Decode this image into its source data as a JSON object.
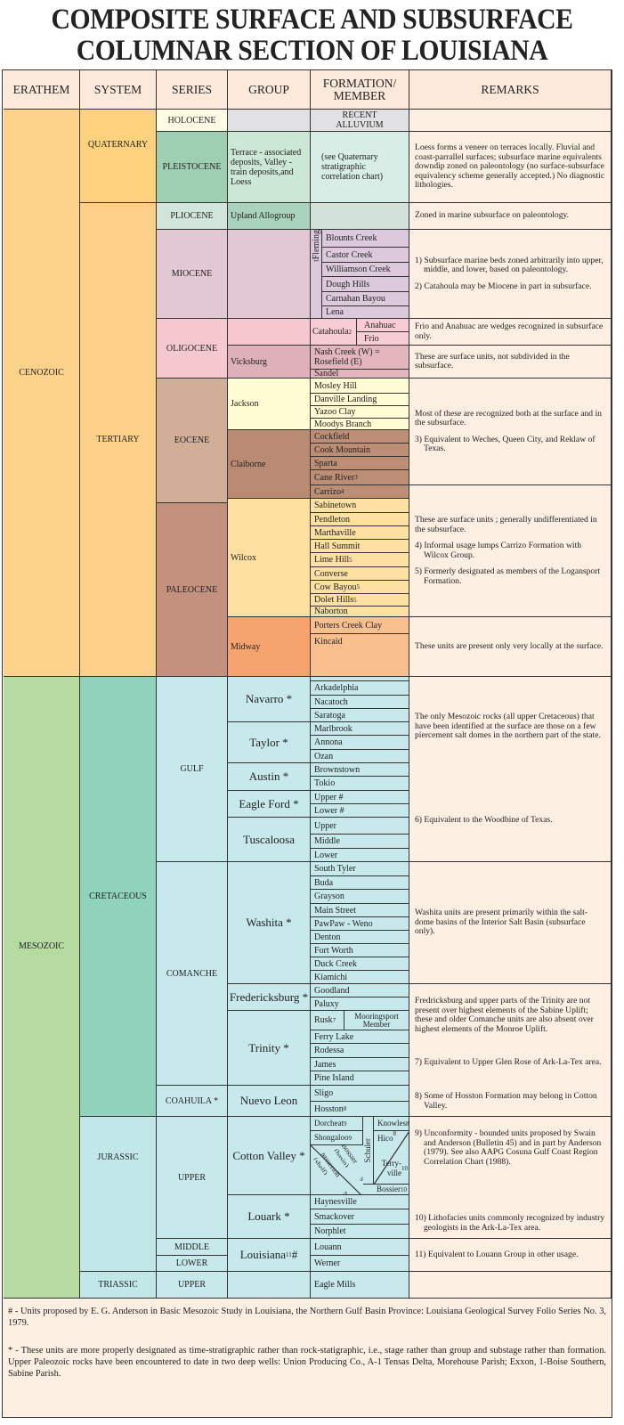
{
  "title": [
    "COMPOSITE SURFACE AND SUBSURFACE",
    "COLUMNAR SECTION OF LOUISIANA"
  ],
  "headers": {
    "erathem": "ERATHEM",
    "system": "SYSTEM",
    "series": "SERIES",
    "group": "GROUP",
    "formation": "FORMATION/ MEMBER",
    "remarks": "REMARKS"
  },
  "erathems": [
    {
      "label": "CENOZOIC",
      "color": "#fdd38c"
    },
    {
      "label": "MESOZOIC",
      "color": "#b5dba0"
    }
  ],
  "systems": [
    {
      "label": "QUATERNARY",
      "color": "#fdd27c"
    },
    {
      "label": "TERTIARY",
      "color": "#fdd08a"
    },
    {
      "label": "CRETACEOUS",
      "color": "#8fd3bd"
    },
    {
      "label": "JURASSIC",
      "color": "#c2e7e9"
    },
    {
      "label": "TRIASSIC",
      "color": "#c2e7e9"
    }
  ],
  "series": [
    "HOLOCENE",
    "PLEISTOCENE",
    "PLIOCENE",
    "MIOCENE",
    "OLIGOCENE",
    "EOCENE",
    "PALEOCENE",
    "GULF",
    "COMANCHE",
    "COAHUILA *",
    "UPPER",
    "MIDDLE",
    "LOWER",
    "UPPER"
  ],
  "groups": [
    {
      "label": ""
    },
    {
      "label": "Terrace - associated deposits, Valley - train deposits,and Loess"
    },
    {
      "label": "Upland Allogroup"
    },
    {
      "label": ""
    },
    {
      "label": ""
    },
    {
      "label": "Vicksburg"
    },
    {
      "label": "Jackson"
    },
    {
      "label": "Claiborne"
    },
    {
      "label": "Wilcox"
    },
    {
      "label": "Midway"
    },
    {
      "label": "Navarro *"
    },
    {
      "label": "Taylor *"
    },
    {
      "label": "Austin *"
    },
    {
      "label": "Eagle Ford *"
    },
    {
      "label": "Tuscaloosa"
    },
    {
      "label": "Washita *"
    },
    {
      "label": "Fredericksburg *"
    },
    {
      "label": "Trinity *"
    },
    {
      "label": "Nuevo Leon"
    },
    {
      "label": "Cotton Valley *"
    },
    {
      "label": "Louark *"
    },
    {
      "label": "Louisiana",
      "sup": "11",
      "suffix": " #"
    },
    {
      "label": ""
    }
  ],
  "formations": [
    {
      "name": "RECENT ALLUVIUM"
    },
    {
      "name": "(see Quaternary stratigraphic correlation chart)"
    },
    {
      "name": ""
    },
    {
      "name": "Fleming",
      "sup": "1"
    },
    {
      "name": "Blounts Creek"
    },
    {
      "name": "Castor Creek"
    },
    {
      "name": "Williamson Creek"
    },
    {
      "name": "Dough Hills"
    },
    {
      "name": "Carnahan Bayou"
    },
    {
      "name": "Lena"
    },
    {
      "name": "Catahoula",
      "sup": "2"
    },
    {
      "name": "Anahuac"
    },
    {
      "name": "Frio"
    },
    {
      "name": "Nash Creek (W) = Rosefield (E)"
    },
    {
      "name": "Sandel"
    },
    {
      "name": "Mosley Hill"
    },
    {
      "name": "Danville Landing"
    },
    {
      "name": "Yazoo Clay"
    },
    {
      "name": "Moodys Branch"
    },
    {
      "name": "Cockfield"
    },
    {
      "name": "Cook Mountain"
    },
    {
      "name": "Sparta"
    },
    {
      "name": "Cane River",
      "sup": "3"
    },
    {
      "name": "Carrizo",
      "sup": "4"
    },
    {
      "name": "Sabinetown"
    },
    {
      "name": "Pendleton"
    },
    {
      "name": "Marthaville"
    },
    {
      "name": "Hall Summit"
    },
    {
      "name": "Lime Hill",
      "sup": "5"
    },
    {
      "name": "Converse"
    },
    {
      "name": "Cow Bayou",
      "sup": "5"
    },
    {
      "name": "Dolet Hills",
      "sup": "5"
    },
    {
      "name": "Naborton"
    },
    {
      "name": "Porters Creek Clay"
    },
    {
      "name": "Kincaid"
    },
    {
      "name": "Arkadelphia"
    },
    {
      "name": "Nacatoch"
    },
    {
      "name": "Saratoga"
    },
    {
      "name": "Marlbrook"
    },
    {
      "name": "Annona"
    },
    {
      "name": "Ozan"
    },
    {
      "name": "Brownstown"
    },
    {
      "name": "Tokio"
    },
    {
      "name": "Upper #"
    },
    {
      "name": "Lower #"
    },
    {
      "name": "Upper"
    },
    {
      "name": "Middle"
    },
    {
      "name": "Lower"
    },
    {
      "name": "South Tyler"
    },
    {
      "name": "Buda"
    },
    {
      "name": "Grayson"
    },
    {
      "name": "Main Street"
    },
    {
      "name": "PawPaw - Weno"
    },
    {
      "name": "Denton"
    },
    {
      "name": "Fort Worth"
    },
    {
      "name": "Duck Creek"
    },
    {
      "name": "Kiamichi"
    },
    {
      "name": "Goodland"
    },
    {
      "name": "Paluxy"
    },
    {
      "name": "Rusk",
      "sup": "7"
    },
    {
      "name": "Mooringsport Member"
    },
    {
      "name": "Ferry Lake"
    },
    {
      "name": "Rodessa"
    },
    {
      "name": "James"
    },
    {
      "name": "Pine Island"
    },
    {
      "name": "Sligo"
    },
    {
      "name": "Hosston",
      "sup": "8"
    },
    {
      "name": "Dorcheat",
      "sup": "9"
    },
    {
      "name": "Shongaloo",
      "sup": "9"
    },
    {
      "name": "Bossier (basin)",
      "sup": "9"
    },
    {
      "name": "Millerton (shelf)",
      "sup": "9"
    },
    {
      "name": "Schuler"
    },
    {
      "name": "Knowles",
      "sup": "8"
    },
    {
      "name": "Hico",
      "sup": "8"
    },
    {
      "name": "Terry- ville",
      "sup": "10"
    },
    {
      "name": "Bossier",
      "sup": "10"
    },
    {
      "name": "Haynesville"
    },
    {
      "name": "Smackover"
    },
    {
      "name": "Norphlet"
    },
    {
      "name": "Louann"
    },
    {
      "name": "Werner"
    },
    {
      "name": "Eagle Mills"
    }
  ],
  "remarks": [
    {
      "paras": []
    },
    {
      "paras": [
        "Loess forms a veneer on terraces locally. Fluvial and coast-parrallel surfaces; subsurface marine equivalents downdip zoned on paleontology (no surface-subsurface equivalency scheme generally accepted.) No diagnostic lithologies."
      ]
    },
    {
      "paras": [
        "Zoned in marine subsurface on paleontology."
      ]
    },
    {
      "paras": [
        "1) Subsurface marine beds zoned arbitrarily into upper, middle, and lower, based on paleontology.",
        "2) Catahoula may be Miocene in part in subsurface."
      ]
    },
    {
      "paras": [
        "Frio and Anahuac are wedges recognized in subsurface only."
      ]
    },
    {
      "paras": [
        "These are surface units, not subdivided in the subsurface."
      ]
    },
    {
      "paras": [
        "Most of these are recognized both at the surface and in the subsurface.",
        "3) Equivalent to Weches, Queen City, and Reklaw of Texas."
      ]
    },
    {
      "paras": [
        "These are surface units ; generally undifferentiated in the subsurface.",
        "4) Informal usage lumps Carrizo Formation with Wilcox Group.",
        "5) Formerly designated as members of the Logansport Formation."
      ]
    },
    {
      "paras": [
        "These units are present only very locally at the surface."
      ]
    },
    {
      "paras": [
        "The only Mesozoic rocks (all upper Cretaceous) that have been identified at the surface are those on a few piercement salt domes in the northern part of the state.",
        "6) Equivalent to the Woodbine of Texas."
      ]
    },
    {
      "paras": [
        "Washita units are present primarily within the salt-dome basins of the Interior Salt Basin (subsurface only)."
      ]
    },
    {
      "paras": [
        "Fredricksburg and upper parts of the Trinity are not present over highest elements of the Sabine Uplift; these and older Comanche units are also absent over highest elements of the Monroe Uplift.",
        "7) Equivalent to Upper Glen Rose of Ark-La-Tex area.",
        "8) Some of Hosston Formation may belong in Cotton Valley."
      ]
    },
    {
      "paras": [
        "9) Unconformity - bounded units proposed by Swain and Anderson (Bulletin 45) and in part by Anderson (1979). See also AAPG Cosuna Gulf Coast Region Correlation Chart (1988).",
        "10) Lithofacies units commonly recognized by industry geologists in the Ark-La-Tex area."
      ]
    },
    {
      "paras": [
        "11) Equivalent to Louann Group in other usage."
      ]
    },
    {
      "paras": []
    }
  ],
  "footnotes": [
    "# - Units proposed by E. G. Anderson in Basic Mesozoic Study in Louisiana, the Northern Gulf Basin Province: Louisiana Geological Survey Folio Series No. 3, 1979.",
    "* - These units are more properly designated as time-stratigraphic rather than rock-statigraphic, i.e., stage rather than group and substage rather than formation. Upper Paleozoic rocks have been encountered to date in two deep wells: Union Producing Co., A-1 Tensas Delta, Morehouse Parish; Exxon, 1-Boise Southern, Sabine Parish."
  ],
  "colors": {
    "header": "#fde9d9",
    "remarks": "#fdefe2",
    "mesozoic_units": "#c8e9ec",
    "border": "#333333"
  }
}
